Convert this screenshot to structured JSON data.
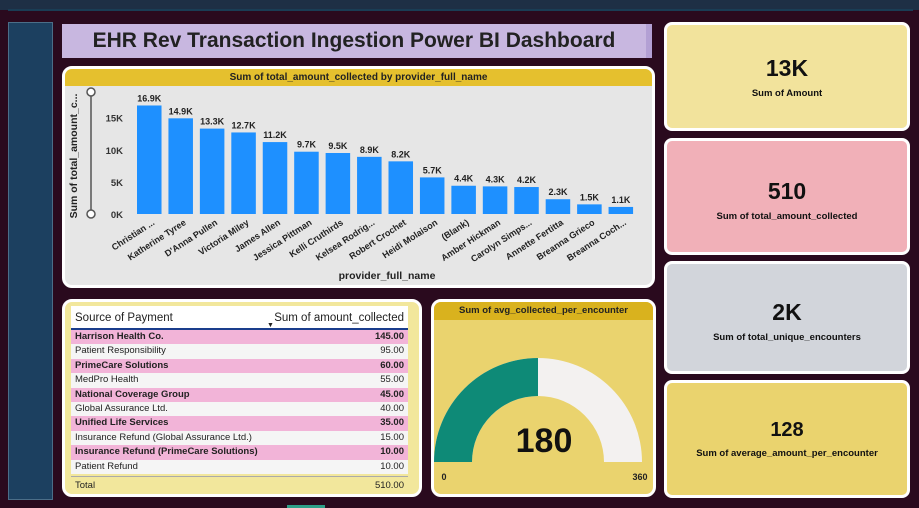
{
  "title": "EHR Rev Transaction Ingestion Power BI Dashboard",
  "chart_data": {
    "type": "bar",
    "title": "Sum of total_amount_collected by provider_full_name",
    "xlabel": "provider_full_name",
    "ylabel": "Sum of total_amount_c...",
    "ylim": [
      0,
      19000
    ],
    "yticks": [
      "0K",
      "5K",
      "10K",
      "15K"
    ],
    "categories": [
      "Christian ...",
      "Katherine Tyree",
      "D'Anna Pullen",
      "Victoria Miley",
      "James Allen",
      "Jessica Pittman",
      "Kelli Cruthirds",
      "Kelsea Rodrig...",
      "Robert Crochet",
      "Heidi Molaison",
      "(Blank)",
      "Amber Hickman",
      "Carolyn Simps...",
      "Annette Fertitta",
      "Breanna Grieco",
      "Breanna Coch..."
    ],
    "values": [
      16900,
      14900,
      13300,
      12700,
      11200,
      9700,
      9500,
      8900,
      8200,
      5700,
      4400,
      4300,
      4200,
      2300,
      1500,
      1100
    ],
    "data_labels": [
      "16.9K",
      "14.9K",
      "13.3K",
      "12.7K",
      "11.2K",
      "9.7K",
      "9.5K",
      "8.9K",
      "8.2K",
      "5.7K",
      "4.4K",
      "4.3K",
      "4.2K",
      "2.3K",
      "1.5K",
      "1.1K"
    ],
    "bar_color": "#1e90ff",
    "grid": false
  },
  "table": {
    "col1": "Source of Payment",
    "col2": "Sum of amount_collected",
    "rows": [
      {
        "name": "Harrison Health Co.",
        "value": "145.00"
      },
      {
        "name": "Patient Responsibility",
        "value": "95.00"
      },
      {
        "name": "PrimeCare Solutions",
        "value": "60.00"
      },
      {
        "name": "MedPro Health",
        "value": "55.00"
      },
      {
        "name": "National Coverage Group",
        "value": "45.00"
      },
      {
        "name": "Global Assurance Ltd.",
        "value": "40.00"
      },
      {
        "name": "Unified Life Services",
        "value": "35.00"
      },
      {
        "name": "Insurance Refund (Global Assurance Ltd.)",
        "value": "15.00"
      },
      {
        "name": "Insurance Refund (PrimeCare Solutions)",
        "value": "10.00"
      },
      {
        "name": "Patient Refund",
        "value": "10.00"
      }
    ],
    "total_label": "Total",
    "total_value": "510.00"
  },
  "gauge": {
    "title": "Sum of avg_collected_per_encounter",
    "value": 180,
    "value_label": "180",
    "min_label": "0",
    "max_label": "360",
    "min": 0,
    "max": 360,
    "fill_color": "#0e8a77",
    "track_color": "#f3f1f0"
  },
  "kpis": [
    {
      "value": "13K",
      "label": "Sum of Amount"
    },
    {
      "value": "510",
      "label": "Sum of total_amount_collected"
    },
    {
      "value": "2K",
      "label": "Sum of total_unique_encounters"
    },
    {
      "value": "128",
      "label": "Sum of average_amount_per_encounter"
    }
  ]
}
